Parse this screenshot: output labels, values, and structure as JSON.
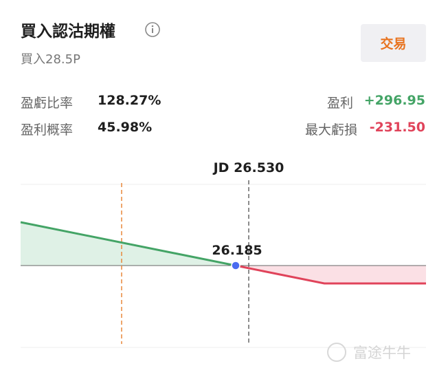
{
  "header": {
    "title": "買入認沽期權",
    "subtitle": "買入28.5P",
    "action": "交易"
  },
  "stats": {
    "left": [
      {
        "label": "盈虧比率",
        "value": "128.27%"
      },
      {
        "label": "盈利概率",
        "value": "45.98%"
      }
    ],
    "right": [
      {
        "label": "盈利",
        "value": "+296.95"
      },
      {
        "label": "最大虧損",
        "value": "-231.50"
      }
    ]
  },
  "chart": {
    "price_label": "JD 26.530",
    "breakeven_label": "26.185"
  },
  "watermark": "富途牛牛"
}
